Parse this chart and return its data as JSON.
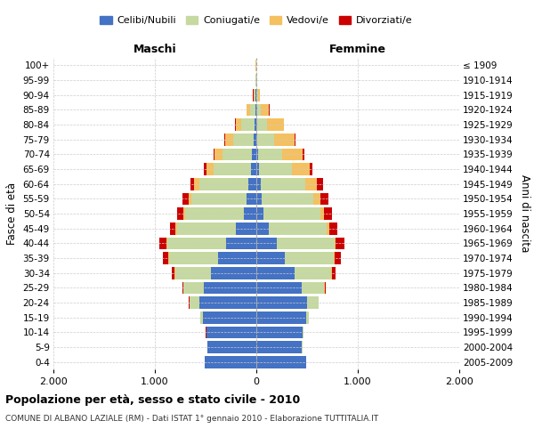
{
  "age_groups": [
    "0-4",
    "5-9",
    "10-14",
    "15-19",
    "20-24",
    "25-29",
    "30-34",
    "35-39",
    "40-44",
    "45-49",
    "50-54",
    "55-59",
    "60-64",
    "65-69",
    "70-74",
    "75-79",
    "80-84",
    "85-89",
    "90-94",
    "95-99",
    "100+"
  ],
  "birth_years": [
    "2005-2009",
    "2000-2004",
    "1995-1999",
    "1990-1994",
    "1985-1989",
    "1980-1984",
    "1975-1979",
    "1970-1974",
    "1965-1969",
    "1960-1964",
    "1955-1959",
    "1950-1954",
    "1945-1949",
    "1940-1944",
    "1935-1939",
    "1930-1934",
    "1925-1929",
    "1920-1924",
    "1915-1919",
    "1910-1914",
    "≤ 1909"
  ],
  "male_celibi": [
    510,
    480,
    490,
    530,
    560,
    520,
    450,
    380,
    300,
    200,
    120,
    100,
    80,
    55,
    40,
    25,
    15,
    10,
    5,
    3,
    2
  ],
  "male_coniugati": [
    1,
    2,
    5,
    20,
    100,
    200,
    350,
    480,
    580,
    580,
    580,
    540,
    480,
    370,
    290,
    200,
    130,
    55,
    15,
    5,
    2
  ],
  "male_vedovi": [
    0,
    0,
    0,
    0,
    1,
    2,
    3,
    5,
    10,
    15,
    20,
    30,
    50,
    70,
    80,
    80,
    60,
    30,
    10,
    3,
    1
  ],
  "male_divorziati": [
    0,
    0,
    1,
    2,
    5,
    10,
    30,
    55,
    70,
    60,
    60,
    60,
    40,
    20,
    10,
    8,
    5,
    3,
    2,
    1,
    0
  ],
  "female_celibi": [
    490,
    450,
    460,
    490,
    500,
    450,
    380,
    280,
    200,
    120,
    70,
    55,
    40,
    25,
    18,
    12,
    8,
    5,
    4,
    2,
    1
  ],
  "female_coniugati": [
    1,
    2,
    5,
    25,
    110,
    220,
    360,
    480,
    570,
    570,
    560,
    510,
    440,
    330,
    240,
    165,
    100,
    40,
    12,
    4,
    1
  ],
  "female_vedovi": [
    0,
    0,
    0,
    1,
    2,
    3,
    5,
    10,
    15,
    25,
    40,
    70,
    120,
    170,
    200,
    200,
    160,
    80,
    20,
    5,
    2
  ],
  "female_divorziati": [
    0,
    0,
    1,
    2,
    5,
    15,
    35,
    60,
    80,
    80,
    75,
    75,
    55,
    25,
    15,
    12,
    8,
    4,
    2,
    1,
    0
  ],
  "colors": {
    "celibi": "#4472c4",
    "coniugati": "#c5d9a0",
    "vedovi": "#f4c060",
    "divorziati": "#cc0000"
  },
  "xlim": 2000,
  "title": "Popolazione per età, sesso e stato civile - 2010",
  "subtitle": "COMUNE DI ALBANO LAZIALE (RM) - Dati ISTAT 1° gennaio 2010 - Elaborazione TUTTITALIA.IT",
  "xlabel_left": "Maschi",
  "xlabel_right": "Femmine",
  "ylabel_left": "Fasce di età",
  "ylabel_right": "Anni di nascita",
  "legend_labels": [
    "Celibi/Nubili",
    "Coniugati/e",
    "Vedovi/e",
    "Divorziati/e"
  ],
  "tick_labels": [
    "2.000",
    "1.000",
    "0",
    "1.000",
    "2.000"
  ],
  "background_color": "#ffffff",
  "grid_color": "#cccccc"
}
